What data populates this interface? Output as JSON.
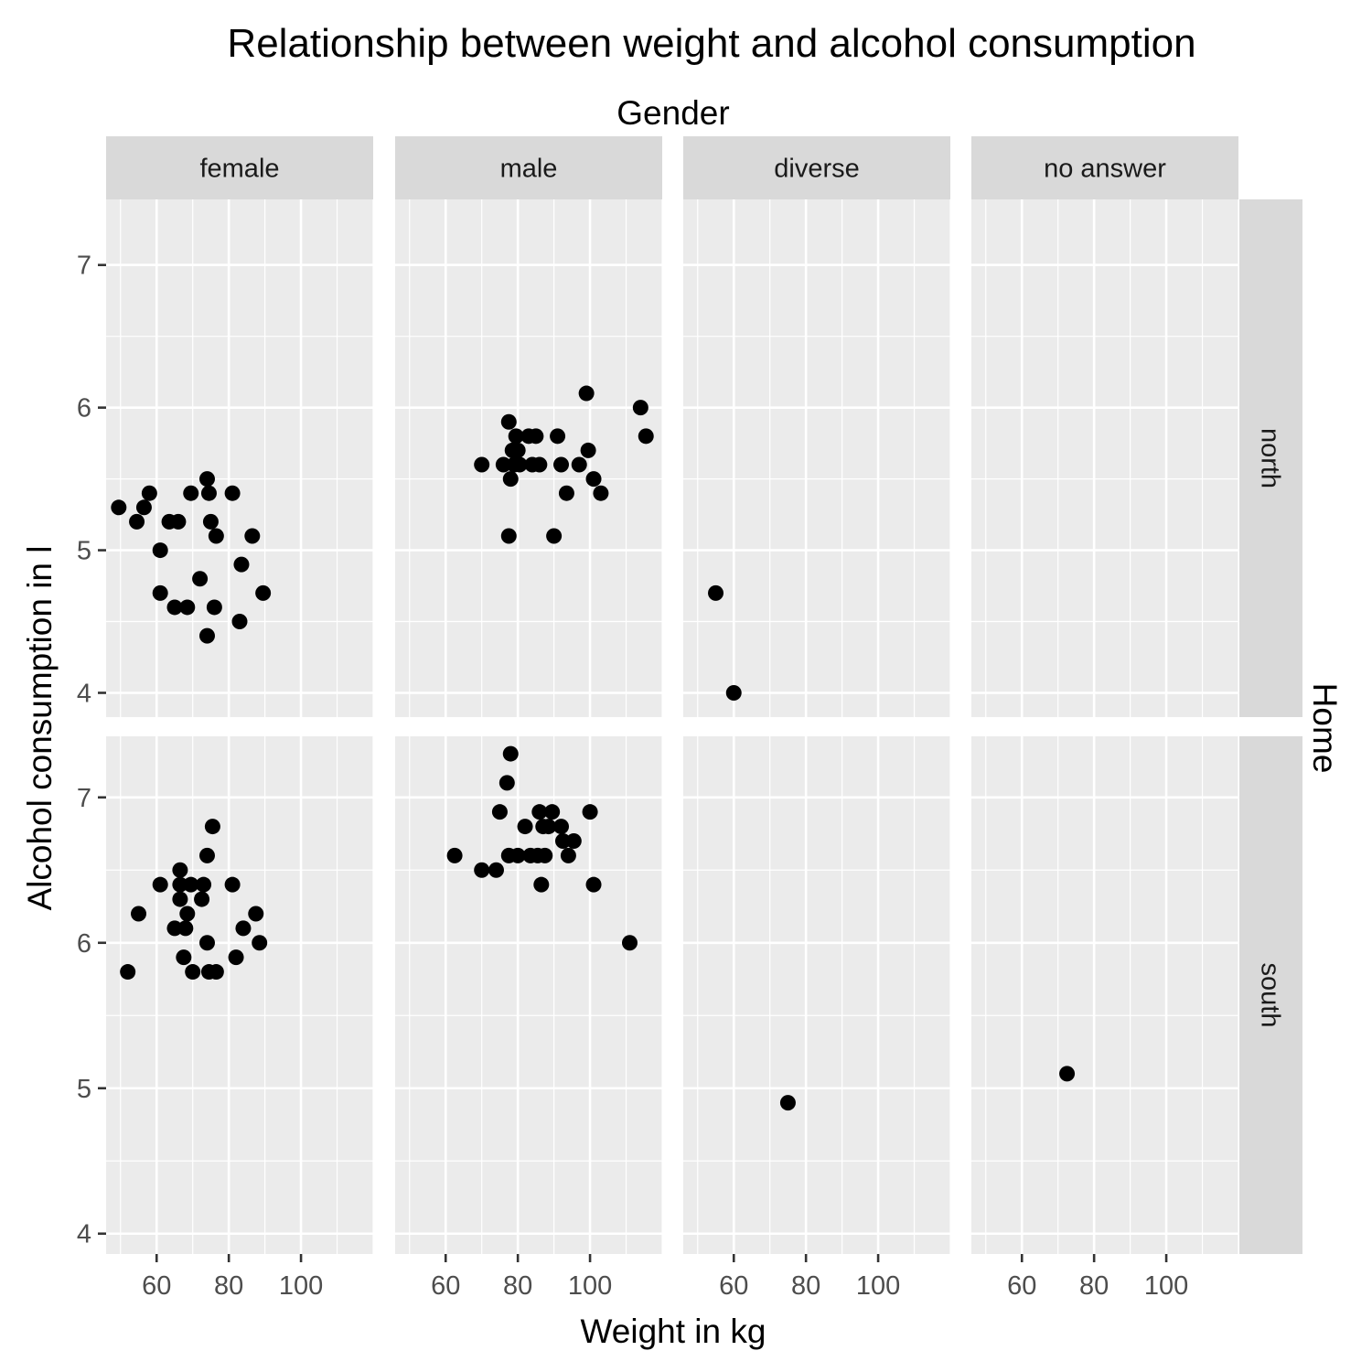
{
  "chart_data": {
    "type": "scatter",
    "title": "Relationship between weight and alcohol consumption",
    "xlabel": "Weight in kg",
    "ylabel": "Alcohol consumption in l",
    "col_facet_title": "Gender",
    "row_facet_title": "Home",
    "columns": [
      "female",
      "male",
      "diverse",
      "no answer"
    ],
    "rows": [
      "north",
      "south"
    ],
    "xlim": [
      46,
      120
    ],
    "x_ticks": [
      60,
      80,
      100
    ],
    "grid": true,
    "point_color": "#000000",
    "panel_background": "#ebebeb",
    "strip_background": "#d9d9d9",
    "panels": [
      {
        "column": "female",
        "row": "north",
        "ylim": [
          3.83,
          7.46
        ],
        "y_ticks": [
          4,
          5,
          6,
          7
        ],
        "points": [
          [
            49.5,
            5.3
          ],
          [
            54.5,
            5.2
          ],
          [
            56.5,
            5.3
          ],
          [
            58,
            5.4
          ],
          [
            61,
            5.0
          ],
          [
            61,
            4.7
          ],
          [
            63.5,
            5.2
          ],
          [
            65,
            4.6
          ],
          [
            66,
            5.2
          ],
          [
            68.5,
            4.6
          ],
          [
            69.5,
            5.4
          ],
          [
            72,
            4.8
          ],
          [
            74,
            5.5
          ],
          [
            74.5,
            5.4
          ],
          [
            74,
            4.4
          ],
          [
            75,
            5.2
          ],
          [
            76,
            4.6
          ],
          [
            76.5,
            5.1
          ],
          [
            81,
            5.4
          ],
          [
            83,
            4.5
          ],
          [
            83.5,
            4.9
          ],
          [
            86.5,
            5.1
          ],
          [
            89.5,
            4.7
          ]
        ]
      },
      {
        "column": "male",
        "row": "north",
        "ylim": [
          3.83,
          7.46
        ],
        "y_ticks": [
          4,
          5,
          6,
          7
        ],
        "points": [
          [
            70,
            5.6
          ],
          [
            76,
            5.6
          ],
          [
            77.5,
            5.9
          ],
          [
            77.5,
            5.1
          ],
          [
            78,
            5.5
          ],
          [
            78.5,
            5.7
          ],
          [
            79,
            5.6
          ],
          [
            79.5,
            5.8
          ],
          [
            80,
            5.7
          ],
          [
            80.5,
            5.6
          ],
          [
            83,
            5.8
          ],
          [
            84,
            5.6
          ],
          [
            85,
            5.8
          ],
          [
            86,
            5.6
          ],
          [
            90,
            5.1
          ],
          [
            91,
            5.8
          ],
          [
            92,
            5.6
          ],
          [
            93.5,
            5.4
          ],
          [
            97,
            5.6
          ],
          [
            99,
            6.1
          ],
          [
            99.5,
            5.7
          ],
          [
            101,
            5.5
          ],
          [
            103,
            5.4
          ],
          [
            114,
            6.0
          ],
          [
            115.5,
            5.8
          ]
        ]
      },
      {
        "column": "diverse",
        "row": "north",
        "ylim": [
          3.83,
          7.46
        ],
        "y_ticks": [
          4,
          5,
          6,
          7
        ],
        "points": [
          [
            55,
            4.7
          ],
          [
            60,
            4.0
          ]
        ]
      },
      {
        "column": "no answer",
        "row": "north",
        "ylim": [
          3.83,
          7.46
        ],
        "y_ticks": [
          4,
          5,
          6,
          7
        ],
        "points": []
      },
      {
        "column": "female",
        "row": "south",
        "ylim": [
          3.86,
          7.42
        ],
        "y_ticks": [
          4,
          5,
          6,
          7
        ],
        "points": [
          [
            52,
            5.8
          ],
          [
            55,
            6.2
          ],
          [
            61,
            6.4
          ],
          [
            65,
            6.1
          ],
          [
            66.5,
            6.5
          ],
          [
            66.5,
            6.4
          ],
          [
            66.5,
            6.3
          ],
          [
            67.5,
            5.9
          ],
          [
            68,
            6.1
          ],
          [
            68.5,
            6.2
          ],
          [
            69.5,
            6.4
          ],
          [
            70,
            5.8
          ],
          [
            72.5,
            6.3
          ],
          [
            73,
            6.4
          ],
          [
            74,
            6.0
          ],
          [
            74,
            6.6
          ],
          [
            74.5,
            5.8
          ],
          [
            75.5,
            6.8
          ],
          [
            76.5,
            5.8
          ],
          [
            81,
            6.4
          ],
          [
            82,
            5.9
          ],
          [
            84,
            6.1
          ],
          [
            87.5,
            6.2
          ],
          [
            88.5,
            6.0
          ]
        ]
      },
      {
        "column": "male",
        "row": "south",
        "ylim": [
          3.86,
          7.42
        ],
        "y_ticks": [
          4,
          5,
          6,
          7
        ],
        "points": [
          [
            62.5,
            6.6
          ],
          [
            70,
            6.5
          ],
          [
            74,
            6.5
          ],
          [
            75,
            6.9
          ],
          [
            77,
            7.1
          ],
          [
            77.5,
            6.6
          ],
          [
            78,
            7.3
          ],
          [
            80,
            6.6
          ],
          [
            82,
            6.8
          ],
          [
            83.5,
            6.6
          ],
          [
            85.5,
            6.6
          ],
          [
            86,
            6.9
          ],
          [
            86.5,
            6.4
          ],
          [
            87,
            6.8
          ],
          [
            87.5,
            6.6
          ],
          [
            88.5,
            6.8
          ],
          [
            89.5,
            6.9
          ],
          [
            92,
            6.8
          ],
          [
            92.5,
            6.7
          ],
          [
            94,
            6.6
          ],
          [
            95.5,
            6.7
          ],
          [
            100,
            6.9
          ],
          [
            101,
            6.4
          ],
          [
            111,
            6.0
          ]
        ]
      },
      {
        "column": "diverse",
        "row": "south",
        "ylim": [
          3.86,
          7.42
        ],
        "y_ticks": [
          4,
          5,
          6,
          7
        ],
        "points": [
          [
            75,
            4.9
          ]
        ]
      },
      {
        "column": "no answer",
        "row": "south",
        "ylim": [
          3.86,
          7.42
        ],
        "y_ticks": [
          4,
          5,
          6,
          7
        ],
        "points": [
          [
            72.5,
            5.1
          ]
        ]
      }
    ]
  }
}
